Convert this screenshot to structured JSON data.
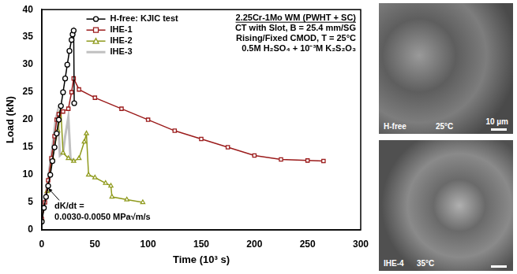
{
  "chart_data": {
    "type": "line",
    "x_label": "Time (10³ s)",
    "y_label": "Load (kN)",
    "xlim": [
      0,
      300
    ],
    "xticks": [
      0,
      50,
      100,
      150,
      200,
      250,
      300
    ],
    "ylim": [
      0,
      40
    ],
    "yticks": [
      0,
      5,
      10,
      15,
      20,
      25,
      30,
      35,
      40
    ],
    "grid": false,
    "legend": "upper left",
    "annotations": {
      "specimen": [
        "2.25Cr-1Mo WM (PWHT + SC)",
        "CT with Slot, B = 25.4 mm/SG",
        "Rising/Fixed CMOD, T = 25°C",
        "0.5M H₂SO₄ + 10⁻³M K₂S₂O₃"
      ],
      "rate": [
        "dK/dt =",
        "0.0030-0.0050 MPa√m/s"
      ]
    },
    "series": [
      {
        "name": "H-free: KJIC test",
        "color": "#000000",
        "marker": "circle",
        "line_style": "solid",
        "x": [
          0,
          2,
          4,
          6,
          8,
          10,
          12,
          14,
          16,
          18,
          20,
          22,
          24,
          26,
          28,
          29,
          30,
          30.5
        ],
        "values": [
          1.5,
          4,
          6,
          8,
          10,
          12.5,
          15,
          17.5,
          20,
          22.5,
          25,
          27.5,
          30,
          32.5,
          34.5,
          35.5,
          36.2,
          23
        ]
      },
      {
        "name": "IHE-1",
        "color": "#9b1b1b",
        "marker": "square",
        "line_style": "solid",
        "x": [
          0,
          3,
          6,
          9,
          12,
          14,
          16,
          20,
          25,
          28,
          30,
          35,
          50,
          75,
          100,
          125,
          150,
          175,
          200,
          225,
          250,
          265
        ],
        "values": [
          2,
          5,
          9,
          13,
          17,
          20,
          21,
          21.5,
          22,
          25,
          27.5,
          25.5,
          24,
          22,
          20,
          18,
          16.5,
          15,
          13.5,
          12.8,
          12.6,
          12.5
        ]
      },
      {
        "name": "IHE-2",
        "color": "#8f9a1c",
        "marker": "triangle",
        "line_style": "solid",
        "x": [
          0,
          5,
          10,
          15,
          18,
          20,
          25,
          30,
          35,
          40,
          42,
          44,
          50,
          60,
          65,
          66,
          80,
          95
        ],
        "values": [
          2,
          7,
          13,
          18,
          21.5,
          14,
          13,
          12.5,
          13,
          16,
          17.5,
          10,
          9.5,
          8.5,
          8,
          6,
          5.5,
          5
        ]
      },
      {
        "name": "IHE-3",
        "color": "#c0c0c0",
        "marker": "none",
        "line_style": "solid",
        "x": [
          0,
          5,
          10,
          13,
          15,
          17,
          20,
          22,
          25,
          27,
          30
        ],
        "values": [
          2,
          8,
          15,
          20,
          21.5,
          13.5,
          14,
          17,
          20.5,
          13,
          12.5
        ]
      }
    ],
    "images": [
      {
        "labels": [
          "H-free",
          "25°C"
        ],
        "scale_bar": "10 µm"
      },
      {
        "labels": [
          "IHE-4",
          "35°C"
        ]
      }
    ]
  }
}
